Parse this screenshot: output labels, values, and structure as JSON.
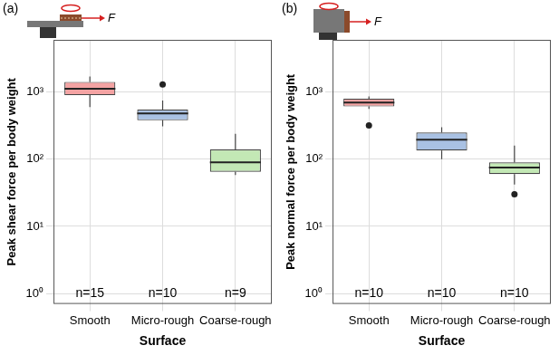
{
  "chart_data": [
    {
      "type": "box",
      "title": "(a)",
      "icon_label": "F",
      "x_label": "Surface",
      "y_label": "Peak shear force per body weight",
      "categories": [
        "Smooth",
        "Micro-rough",
        "Coarse-rough"
      ],
      "colors": [
        "#f4a3a3",
        "#a9c1e3",
        "#c3e8b5"
      ],
      "boxes": [
        {
          "min": 600,
          "q1": 900,
          "median": 1120,
          "q3": 1420,
          "max": 1700,
          "outliers": []
        },
        {
          "min": 310,
          "q1": 380,
          "median": 480,
          "q3": 550,
          "max": 750,
          "outliers": [
            1300
          ]
        },
        {
          "min": 58,
          "q1": 65,
          "median": 90,
          "q3": 140,
          "max": 240,
          "outliers": []
        }
      ],
      "sample_sizes": [
        "n=15",
        "n=10",
        "n=9"
      ],
      "log": "y",
      "grid": true,
      "ylim": [
        0.7,
        6000
      ],
      "yticks": [
        {
          "value": 1,
          "label": "10⁰"
        },
        {
          "value": 10,
          "label": "10¹"
        },
        {
          "value": 100,
          "label": "10²"
        },
        {
          "value": 1000,
          "label": "10³"
        }
      ]
    },
    {
      "type": "box",
      "title": "(b)",
      "icon_label": "F",
      "x_label": "Surface",
      "y_label": "Peak normal force per body weight",
      "categories": [
        "Smooth",
        "Micro-rough",
        "Coarse-rough"
      ],
      "colors": [
        "#f4a3a3",
        "#a9c1e3",
        "#c3e8b5"
      ],
      "boxes": [
        {
          "min": 560,
          "q1": 610,
          "median": 700,
          "q3": 800,
          "max": 860,
          "outliers": [
            320
          ]
        },
        {
          "min": 100,
          "q1": 135,
          "median": 195,
          "q3": 250,
          "max": 300,
          "outliers": []
        },
        {
          "min": 42,
          "q1": 60,
          "median": 75,
          "q3": 90,
          "max": 160,
          "outliers": [
            30
          ]
        }
      ],
      "sample_sizes": [
        "n=10",
        "n=10",
        "n=10"
      ],
      "log": "y",
      "grid": true,
      "ylim": [
        0.7,
        6000
      ],
      "yticks": [
        {
          "value": 1,
          "label": "10⁰"
        },
        {
          "value": 10,
          "label": "10¹"
        },
        {
          "value": 100,
          "label": "10²"
        },
        {
          "value": 1000,
          "label": "10³"
        }
      ]
    }
  ]
}
